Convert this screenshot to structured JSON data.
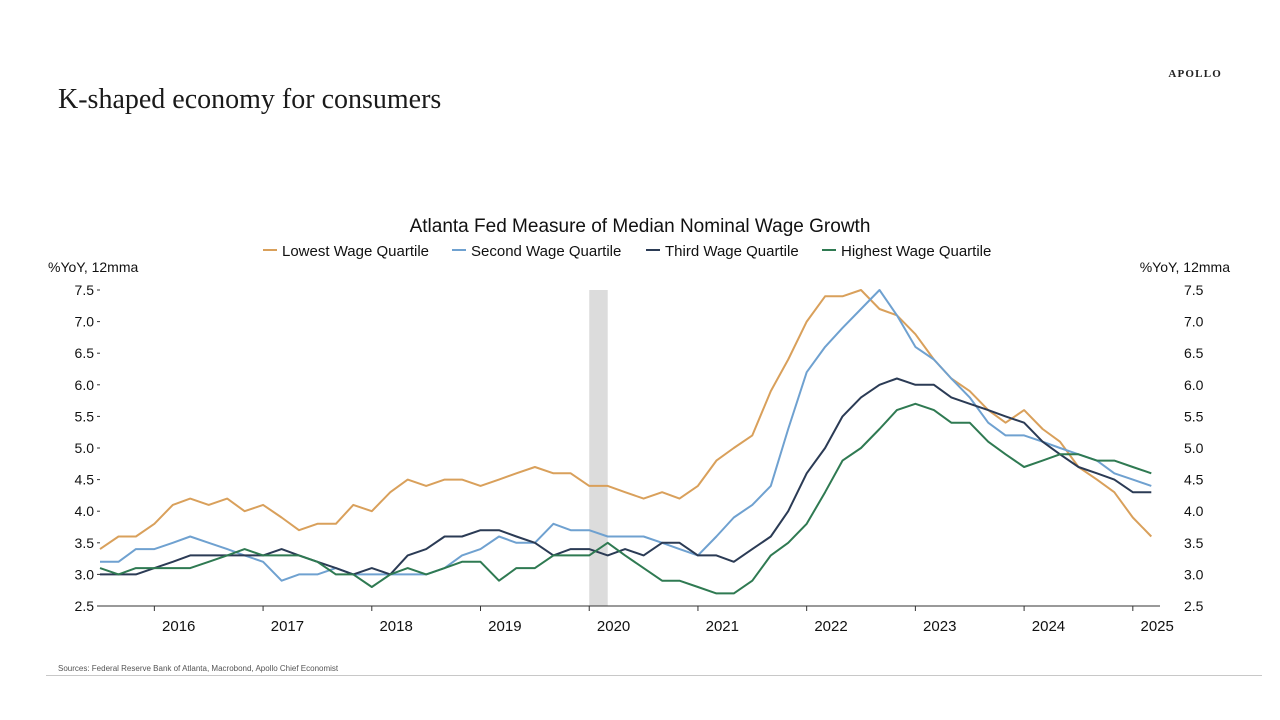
{
  "page": {
    "title": "K-shaped economy for consumers",
    "brand": "APOLLO",
    "source": "Sources: Federal Reserve Bank of Atlanta, Macrobond, Apollo Chief Economist"
  },
  "chart_data": {
    "type": "line",
    "title": "Atlanta Fed Measure of Median Nominal Wage Growth",
    "ylabel_left": "%YoY, 12mma",
    "ylabel_right": "%YoY, 12mma",
    "ylim": [
      2.5,
      7.5
    ],
    "yticks": [
      "2.5",
      "3.0",
      "3.5",
      "4.0",
      "4.5",
      "5.0",
      "5.5",
      "6.0",
      "6.5",
      "7.0",
      "7.5"
    ],
    "xlim": [
      2015.5,
      2025.25
    ],
    "xticks": [
      "2016",
      "2017",
      "2018",
      "2019",
      "2020",
      "2021",
      "2022",
      "2023",
      "2024",
      "2025"
    ],
    "legend_position": "top-center",
    "grid": false,
    "recession_shading": [
      2020.0,
      2020.17
    ],
    "series": [
      {
        "name": "Lowest Wage Quartile",
        "color": "#d9a05b",
        "x": [
          2015.5,
          2015.67,
          2015.83,
          2016.0,
          2016.17,
          2016.33,
          2016.5,
          2016.67,
          2016.83,
          2017.0,
          2017.17,
          2017.33,
          2017.5,
          2017.67,
          2017.83,
          2018.0,
          2018.17,
          2018.33,
          2018.5,
          2018.67,
          2018.83,
          2019.0,
          2019.17,
          2019.33,
          2019.5,
          2019.67,
          2019.83,
          2020.0,
          2020.17,
          2020.33,
          2020.5,
          2020.67,
          2020.83,
          2021.0,
          2021.17,
          2021.33,
          2021.5,
          2021.67,
          2021.83,
          2022.0,
          2022.17,
          2022.33,
          2022.5,
          2022.67,
          2022.83,
          2023.0,
          2023.17,
          2023.33,
          2023.5,
          2023.67,
          2023.83,
          2024.0,
          2024.17,
          2024.33,
          2024.5,
          2024.67,
          2024.83,
          2025.0,
          2025.17
        ],
        "values": [
          3.4,
          3.6,
          3.6,
          3.8,
          4.1,
          4.2,
          4.1,
          4.2,
          4.0,
          4.1,
          3.9,
          3.7,
          3.8,
          3.8,
          4.1,
          4.0,
          4.3,
          4.5,
          4.4,
          4.5,
          4.5,
          4.4,
          4.5,
          4.6,
          4.7,
          4.6,
          4.6,
          4.4,
          4.4,
          4.3,
          4.2,
          4.3,
          4.2,
          4.4,
          4.8,
          5.0,
          5.2,
          5.9,
          6.4,
          7.0,
          7.4,
          7.4,
          7.5,
          7.2,
          7.1,
          6.8,
          6.4,
          6.1,
          5.9,
          5.6,
          5.4,
          5.6,
          5.3,
          5.1,
          4.7,
          4.5,
          4.3,
          3.9,
          3.6
        ]
      },
      {
        "name": "Second Wage Quartile",
        "color": "#6fa1d0",
        "x": [
          2015.5,
          2015.67,
          2015.83,
          2016.0,
          2016.17,
          2016.33,
          2016.5,
          2016.67,
          2016.83,
          2017.0,
          2017.17,
          2017.33,
          2017.5,
          2017.67,
          2017.83,
          2018.0,
          2018.17,
          2018.33,
          2018.5,
          2018.67,
          2018.83,
          2019.0,
          2019.17,
          2019.33,
          2019.5,
          2019.67,
          2019.83,
          2020.0,
          2020.17,
          2020.33,
          2020.5,
          2020.67,
          2020.83,
          2021.0,
          2021.17,
          2021.33,
          2021.5,
          2021.67,
          2021.83,
          2022.0,
          2022.17,
          2022.33,
          2022.5,
          2022.67,
          2022.83,
          2023.0,
          2023.17,
          2023.33,
          2023.5,
          2023.67,
          2023.83,
          2024.0,
          2024.17,
          2024.33,
          2024.5,
          2024.67,
          2024.83,
          2025.0,
          2025.17
        ],
        "values": [
          3.2,
          3.2,
          3.4,
          3.4,
          3.5,
          3.6,
          3.5,
          3.4,
          3.3,
          3.2,
          2.9,
          3.0,
          3.0,
          3.1,
          3.0,
          3.0,
          3.0,
          3.0,
          3.0,
          3.1,
          3.3,
          3.4,
          3.6,
          3.5,
          3.5,
          3.8,
          3.7,
          3.7,
          3.6,
          3.6,
          3.6,
          3.5,
          3.4,
          3.3,
          3.6,
          3.9,
          4.1,
          4.4,
          5.3,
          6.2,
          6.6,
          6.9,
          7.2,
          7.5,
          7.1,
          6.6,
          6.4,
          6.1,
          5.8,
          5.4,
          5.2,
          5.2,
          5.1,
          5.0,
          4.9,
          4.8,
          4.6,
          4.5,
          4.4
        ]
      },
      {
        "name": "Third Wage Quartile",
        "color": "#2b3b55",
        "x": [
          2015.5,
          2015.67,
          2015.83,
          2016.0,
          2016.17,
          2016.33,
          2016.5,
          2016.67,
          2016.83,
          2017.0,
          2017.17,
          2017.33,
          2017.5,
          2017.67,
          2017.83,
          2018.0,
          2018.17,
          2018.33,
          2018.5,
          2018.67,
          2018.83,
          2019.0,
          2019.17,
          2019.33,
          2019.5,
          2019.67,
          2019.83,
          2020.0,
          2020.17,
          2020.33,
          2020.5,
          2020.67,
          2020.83,
          2021.0,
          2021.17,
          2021.33,
          2021.5,
          2021.67,
          2021.83,
          2022.0,
          2022.17,
          2022.33,
          2022.5,
          2022.67,
          2022.83,
          2023.0,
          2023.17,
          2023.33,
          2023.5,
          2023.67,
          2023.83,
          2024.0,
          2024.17,
          2024.33,
          2024.5,
          2024.67,
          2024.83,
          2025.0,
          2025.17
        ],
        "values": [
          3.0,
          3.0,
          3.0,
          3.1,
          3.2,
          3.3,
          3.3,
          3.3,
          3.3,
          3.3,
          3.4,
          3.3,
          3.2,
          3.1,
          3.0,
          3.1,
          3.0,
          3.3,
          3.4,
          3.6,
          3.6,
          3.7,
          3.7,
          3.6,
          3.5,
          3.3,
          3.4,
          3.4,
          3.3,
          3.4,
          3.3,
          3.5,
          3.5,
          3.3,
          3.3,
          3.2,
          3.4,
          3.6,
          4.0,
          4.6,
          5.0,
          5.5,
          5.8,
          6.0,
          6.1,
          6.0,
          6.0,
          5.8,
          5.7,
          5.6,
          5.5,
          5.4,
          5.1,
          4.9,
          4.7,
          4.6,
          4.5,
          4.3,
          4.3
        ]
      },
      {
        "name": "Highest Wage Quartile",
        "color": "#2f7a52",
        "x": [
          2015.5,
          2015.67,
          2015.83,
          2016.0,
          2016.17,
          2016.33,
          2016.5,
          2016.67,
          2016.83,
          2017.0,
          2017.17,
          2017.33,
          2017.5,
          2017.67,
          2017.83,
          2018.0,
          2018.17,
          2018.33,
          2018.5,
          2018.67,
          2018.83,
          2019.0,
          2019.17,
          2019.33,
          2019.5,
          2019.67,
          2019.83,
          2020.0,
          2020.17,
          2020.33,
          2020.5,
          2020.67,
          2020.83,
          2021.0,
          2021.17,
          2021.33,
          2021.5,
          2021.67,
          2021.83,
          2022.0,
          2022.17,
          2022.33,
          2022.5,
          2022.67,
          2022.83,
          2023.0,
          2023.17,
          2023.33,
          2023.5,
          2023.67,
          2023.83,
          2024.0,
          2024.17,
          2024.33,
          2024.5,
          2024.67,
          2024.83,
          2025.0,
          2025.17
        ],
        "values": [
          3.1,
          3.0,
          3.1,
          3.1,
          3.1,
          3.1,
          3.2,
          3.3,
          3.4,
          3.3,
          3.3,
          3.3,
          3.2,
          3.0,
          3.0,
          2.8,
          3.0,
          3.1,
          3.0,
          3.1,
          3.2,
          3.2,
          2.9,
          3.1,
          3.1,
          3.3,
          3.3,
          3.3,
          3.5,
          3.3,
          3.1,
          2.9,
          2.9,
          2.8,
          2.7,
          2.7,
          2.9,
          3.3,
          3.5,
          3.8,
          4.3,
          4.8,
          5.0,
          5.3,
          5.6,
          5.7,
          5.6,
          5.4,
          5.4,
          5.1,
          4.9,
          4.7,
          4.8,
          4.9,
          4.9,
          4.8,
          4.8,
          4.7,
          4.6
        ]
      }
    ]
  }
}
